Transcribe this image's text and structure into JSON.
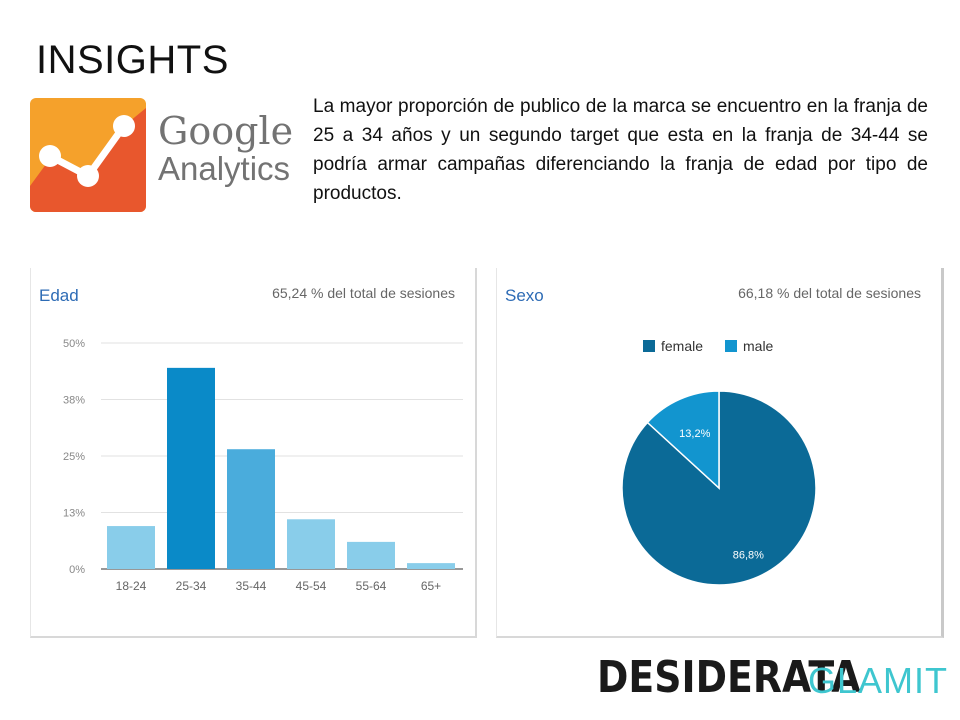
{
  "slide": {
    "title": "INSIGHTS",
    "description": "La mayor proporción de publico de la marca se encuentro en la franja de 25 a 34 años y un segundo target que esta en la franja de 34-44 se podría armar campañas diferenciando la franja de edad por tipo de productos.",
    "logo": {
      "line1": "Google",
      "line2": "Analytics",
      "icon": "google-analytics-icon"
    },
    "footer": {
      "brand1": "DESIDERATA",
      "brand2": "GLAMIT"
    }
  },
  "colors": {
    "bar_light": "#89cdea",
    "bar_dark": "#0a8ac8",
    "bar_mid": "#4aacdc",
    "female": "#0b6a97",
    "male": "#1295cf",
    "ga_orange": "#f5a12b",
    "ga_red": "#e8572d"
  },
  "chart_data": [
    {
      "type": "bar",
      "title": "Edad",
      "subtitle": "65,24 % del total de sesiones",
      "categories": [
        "18-24",
        "25-34",
        "35-44",
        "45-54",
        "55-64",
        "65+"
      ],
      "values": [
        9.5,
        44.5,
        26.5,
        11,
        6,
        1.3
      ],
      "yticks": [
        "0%",
        "13%",
        "25%",
        "38%",
        "50%"
      ],
      "ylim": [
        0,
        50
      ]
    },
    {
      "type": "pie",
      "title": "Sexo",
      "subtitle": "66,18 % del total de sesiones",
      "legend": [
        "female",
        "male"
      ],
      "legend_position": "top",
      "slices": [
        {
          "name": "female",
          "value": 86.8,
          "label": "86,8%"
        },
        {
          "name": "male",
          "value": 13.2,
          "label": "13,2%"
        }
      ]
    }
  ]
}
